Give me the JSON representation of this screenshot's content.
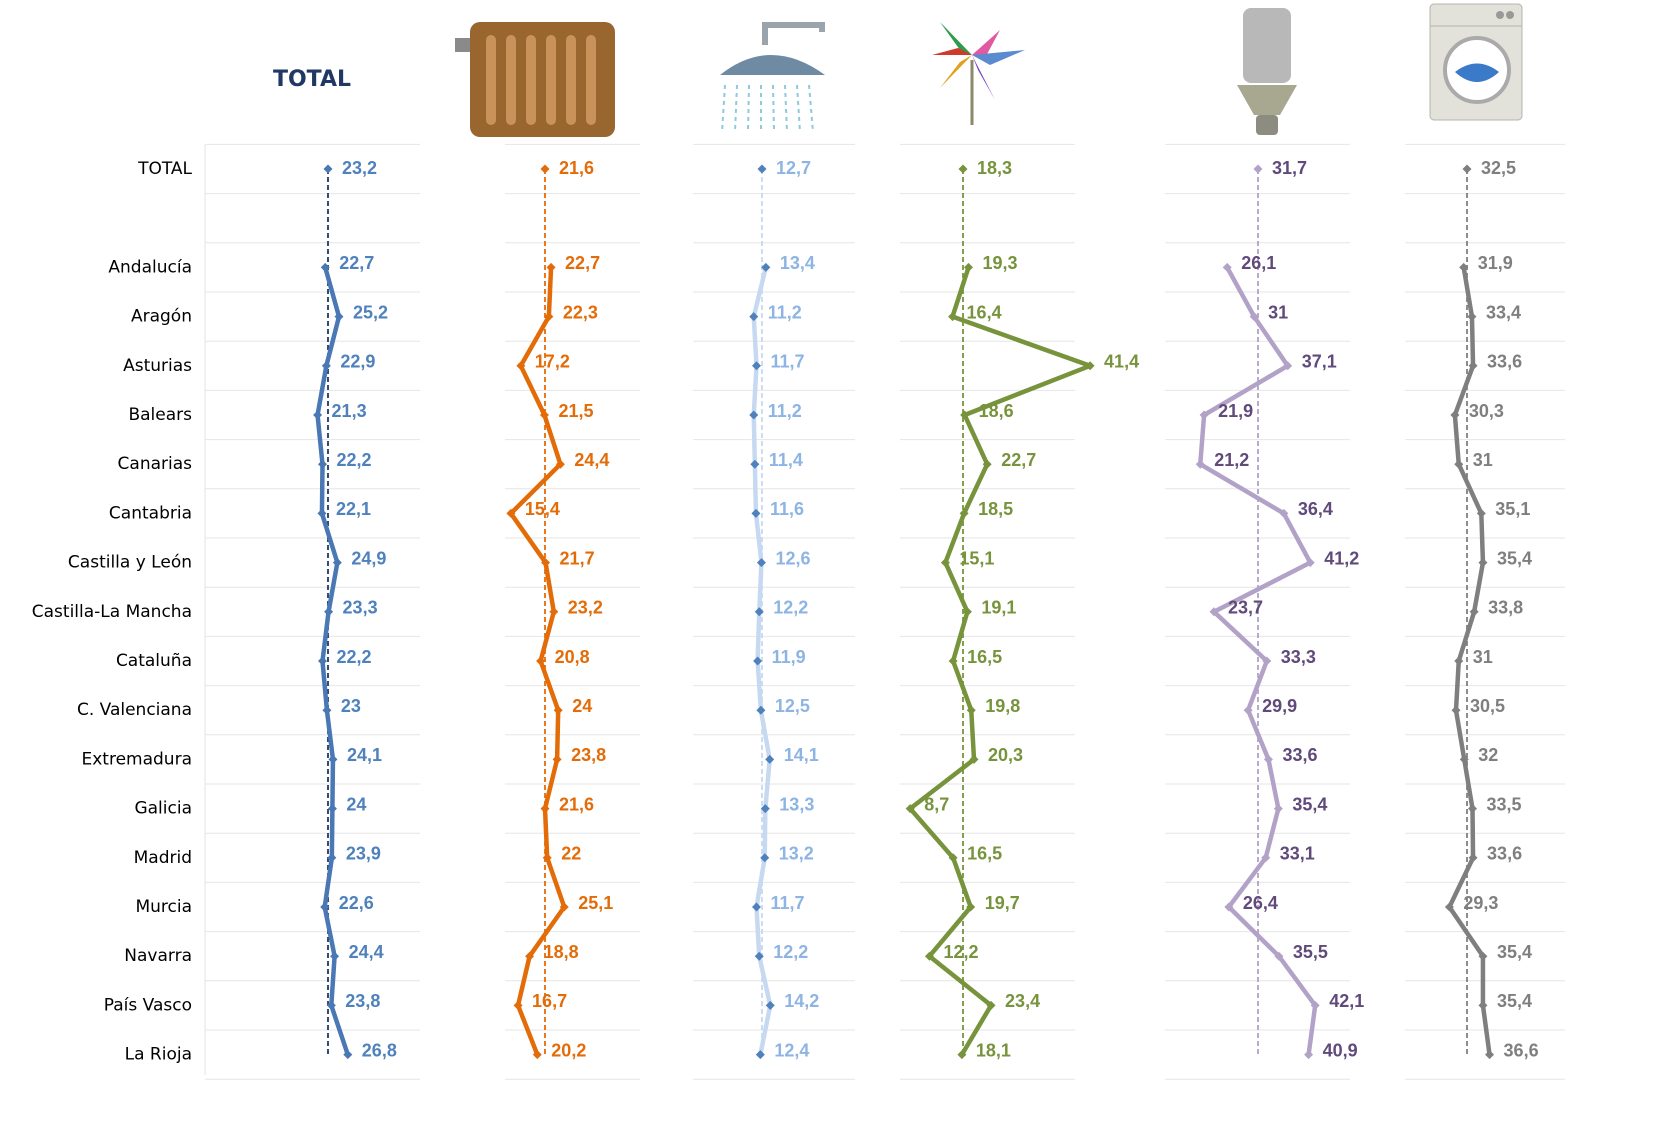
{
  "chart_data": [
    {
      "type": "line",
      "title": "TOTAL",
      "color": "#4a78b5",
      "ref_color": "#1f3864",
      "label_color": "#4f81bd",
      "categories": [
        "TOTAL",
        null,
        "Andalucía",
        "Aragón",
        "Asturias",
        "Balears",
        "Canarias",
        "Cantabria",
        "Castilla y León",
        "Castilla-La Mancha",
        "Cataluña",
        "C. Valenciana",
        "Extremadura",
        "Galicia",
        "Madrid",
        "Murcia",
        "Navarra",
        "País Vasco",
        "La Rioja"
      ],
      "values": [
        23.2,
        null,
        22.7,
        25.2,
        22.9,
        21.3,
        22.2,
        22.1,
        24.9,
        23.3,
        22.2,
        23,
        24.1,
        24,
        23.9,
        22.6,
        24.4,
        23.8,
        26.8
      ],
      "value_labels": [
        "23,2",
        null,
        "22,7",
        "25,2",
        "22,9",
        "21,3",
        "22,2",
        "22,1",
        "24,9",
        "23,3",
        "22,2",
        "23",
        "24,1",
        "24",
        "23,9",
        "22,6",
        "24,4",
        "23,8",
        "26,8"
      ]
    },
    {
      "type": "line",
      "color": "#e36c09",
      "ref_color": "#e36c09",
      "label_color": "#e36c09",
      "values": [
        21.6,
        null,
        22.7,
        22.3,
        17.2,
        21.5,
        24.4,
        15.4,
        21.7,
        23.2,
        20.8,
        24,
        23.8,
        21.6,
        22,
        25.1,
        18.8,
        16.7,
        20.2
      ],
      "value_labels": [
        "21,6",
        null,
        "22,7",
        "22,3",
        "17,2",
        "21,5",
        "24,4",
        "15,4",
        "21,7",
        "23,2",
        "20,8",
        "24",
        "23,8",
        "21,6",
        "22",
        "25,1",
        "18,8",
        "16,7",
        "20,2"
      ]
    },
    {
      "type": "line",
      "color": "#c6d9f1",
      "ref_color": "#c6d9f1",
      "label_color": "#8eb4e3",
      "marker_color": "#4f81bd",
      "values": [
        12.7,
        null,
        13.4,
        11.2,
        11.7,
        11.2,
        11.4,
        11.6,
        12.6,
        12.2,
        11.9,
        12.5,
        14.1,
        13.3,
        13.2,
        11.7,
        12.2,
        14.2,
        12.4
      ],
      "value_labels": [
        "12,7",
        null,
        "13,4",
        "11,2",
        "11,7",
        "11,2",
        "11,4",
        "11,6",
        "12,6",
        "12,2",
        "11,9",
        "12,5",
        "14,1",
        "13,3",
        "13,2",
        "11,7",
        "12,2",
        "14,2",
        "12,4"
      ]
    },
    {
      "type": "line",
      "color": "#77933c",
      "ref_color": "#77933c",
      "label_color": "#77933c",
      "values": [
        18.3,
        null,
        19.3,
        16.4,
        41.4,
        18.6,
        22.7,
        18.5,
        15.1,
        19.1,
        16.5,
        19.8,
        20.3,
        8.7,
        16.5,
        19.7,
        12.2,
        23.4,
        18.1
      ],
      "value_labels": [
        "18,3",
        null,
        "19,3",
        "16,4",
        "41,4",
        "18,6",
        "22,7",
        "18,5",
        "15,1",
        "19,1",
        "16,5",
        "19,8",
        "20,3",
        "8,7",
        "16,5",
        "19,7",
        "12,2",
        "23,4",
        "18,1"
      ]
    },
    {
      "type": "line",
      "color": "#b3a2c7",
      "ref_color": "#b3a2c7",
      "label_color": "#604a7b",
      "values": [
        31.7,
        null,
        26.1,
        31,
        37.1,
        21.9,
        21.2,
        36.4,
        41.2,
        23.7,
        33.3,
        29.9,
        33.6,
        35.4,
        33.1,
        26.4,
        35.5,
        42.1,
        40.9
      ],
      "value_labels": [
        "31,7",
        null,
        "26,1",
        "31",
        "37,1",
        "21,9",
        "21,2",
        "36,4",
        "41,2",
        "23,7",
        "33,3",
        "29,9",
        "33,6",
        "35,4",
        "33,1",
        "26,4",
        "35,5",
        "42,1",
        "40,9"
      ]
    },
    {
      "type": "line",
      "color": "#7f7f7f",
      "ref_color": "#7f7f7f",
      "label_color": "#7f7f7f",
      "values": [
        32.5,
        null,
        31.9,
        33.4,
        33.6,
        30.3,
        31,
        35.1,
        35.4,
        33.8,
        31,
        30.5,
        32,
        33.5,
        33.6,
        29.3,
        35.4,
        35.4,
        36.6
      ],
      "value_labels": [
        "32,5",
        null,
        "31,9",
        "33,4",
        "33,6",
        "30,3",
        "31",
        "35,1",
        "35,4",
        "33,8",
        "31",
        "30,5",
        "32",
        "33,5",
        "33,6",
        "29,3",
        "35,4",
        "35,4",
        "36,6"
      ]
    }
  ]
}
